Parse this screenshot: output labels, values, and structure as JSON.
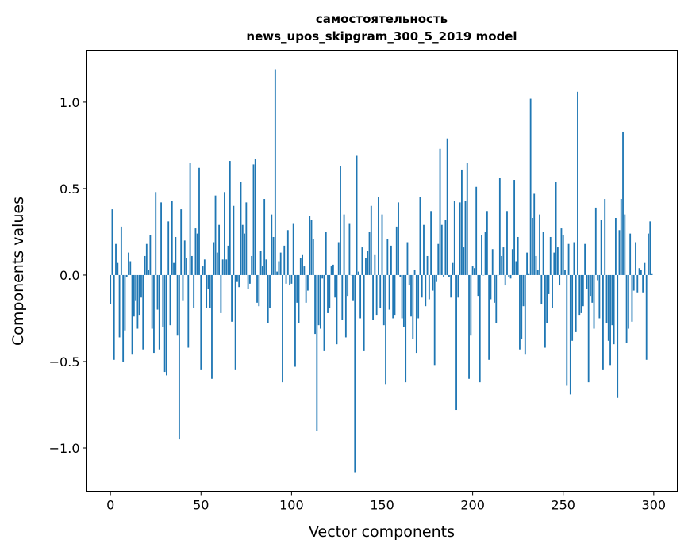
{
  "chart_data": {
    "type": "bar",
    "title": "самостоятельность",
    "subtitle": "news_upos_skipgram_300_5_2019 model",
    "xlabel": "Vector components",
    "ylabel": "Components values",
    "xlim": [
      -13,
      313
    ],
    "ylim": [
      -1.25,
      1.3
    ],
    "grid": false,
    "bar_color": "#1f77b4",
    "xticks": [
      {
        "value": 0,
        "label": "0"
      },
      {
        "value": 50,
        "label": "50"
      },
      {
        "value": 100,
        "label": "100"
      },
      {
        "value": 150,
        "label": "150"
      },
      {
        "value": 200,
        "label": "200"
      },
      {
        "value": 250,
        "label": "250"
      },
      {
        "value": 300,
        "label": "300"
      }
    ],
    "yticks": [
      {
        "value": -1.0,
        "label": "−1.0"
      },
      {
        "value": -0.5,
        "label": "−0.5"
      },
      {
        "value": 0.0,
        "label": "0.0"
      },
      {
        "value": 0.5,
        "label": "0.5"
      },
      {
        "value": 1.0,
        "label": "1.0"
      }
    ],
    "values": [
      -0.17,
      0.38,
      -0.49,
      0.18,
      0.07,
      -0.36,
      0.28,
      -0.5,
      -0.32,
      -0.01,
      0.13,
      0.08,
      -0.46,
      -0.24,
      -0.15,
      -0.31,
      -0.23,
      -0.13,
      -0.43,
      0.11,
      0.18,
      0.03,
      0.23,
      -0.31,
      -0.45,
      0.48,
      -0.2,
      -0.43,
      0.42,
      -0.3,
      -0.56,
      -0.58,
      0.31,
      -0.29,
      0.43,
      0.07,
      0.22,
      -0.35,
      -0.95,
      0.38,
      -0.15,
      0.2,
      0.1,
      -0.42,
      0.65,
      0.11,
      -0.19,
      0.27,
      0.24,
      0.62,
      -0.55,
      0.05,
      0.09,
      -0.19,
      -0.08,
      -0.19,
      -0.6,
      0.19,
      0.46,
      0.13,
      0.29,
      -0.22,
      0.09,
      0.48,
      0.09,
      0.17,
      0.66,
      -0.27,
      0.4,
      -0.55,
      -0.04,
      -0.07,
      0.54,
      0.29,
      0.24,
      0.42,
      -0.08,
      -0.05,
      0.11,
      0.64,
      0.67,
      -0.16,
      -0.18,
      0.14,
      0.05,
      0.44,
      0.09,
      -0.28,
      -0.19,
      0.35,
      0.22,
      1.19,
      0.02,
      0.08,
      0.13,
      -0.62,
      0.17,
      -0.05,
      0.26,
      -0.06,
      -0.05,
      0.3,
      -0.53,
      -0.16,
      -0.28,
      0.1,
      0.12,
      0.05,
      -0.16,
      -0.09,
      0.34,
      0.32,
      0.21,
      -0.34,
      -0.9,
      -0.29,
      -0.31,
      -0.02,
      -0.44,
      0.25,
      -0.22,
      -0.19,
      0.05,
      0.06,
      -0.13,
      -0.4,
      0.19,
      0.63,
      -0.26,
      0.35,
      -0.36,
      -0.12,
      0.3,
      0.0,
      -0.15,
      -1.14,
      0.69,
      0.02,
      -0.25,
      0.16,
      -0.44,
      0.1,
      0.14,
      0.25,
      0.4,
      -0.26,
      0.12,
      -0.23,
      0.45,
      -0.19,
      0.35,
      -0.29,
      -0.63,
      0.21,
      -0.2,
      0.17,
      -0.25,
      -0.23,
      0.28,
      0.42,
      -0.01,
      -0.25,
      -0.3,
      -0.62,
      0.19,
      -0.06,
      -0.24,
      -0.37,
      0.03,
      -0.45,
      -0.25,
      0.45,
      -0.13,
      0.29,
      -0.18,
      0.11,
      -0.14,
      0.37,
      -0.09,
      -0.52,
      -0.04,
      0.18,
      0.73,
      0.29,
      -0.01,
      0.32,
      0.79,
      -0.01,
      -0.13,
      0.07,
      0.43,
      -0.78,
      -0.13,
      0.42,
      0.61,
      0.16,
      0.43,
      0.65,
      -0.6,
      -0.35,
      0.05,
      0.04,
      0.51,
      -0.12,
      -0.62,
      0.23,
      0.0,
      0.25,
      0.37,
      -0.49,
      -0.14,
      0.15,
      -0.16,
      -0.28,
      0.0,
      0.56,
      0.11,
      0.16,
      -0.06,
      0.37,
      -0.01,
      -0.02,
      0.15,
      0.55,
      0.08,
      0.22,
      -0.43,
      -0.37,
      -0.18,
      -0.46,
      0.13,
      0.01,
      1.02,
      0.33,
      0.47,
      0.11,
      0.03,
      0.35,
      -0.17,
      0.25,
      -0.42,
      -0.28,
      -0.11,
      0.22,
      -0.19,
      0.13,
      0.54,
      0.16,
      -0.06,
      0.27,
      0.23,
      0.03,
      -0.64,
      0.18,
      -0.69,
      -0.38,
      0.19,
      -0.33,
      1.06,
      -0.23,
      -0.22,
      -0.18,
      0.18,
      -0.08,
      -0.62,
      -0.12,
      -0.16,
      -0.31,
      0.39,
      -0.03,
      -0.25,
      0.32,
      -0.55,
      0.44,
      -0.28,
      -0.38,
      -0.52,
      -0.29,
      -0.4,
      0.33,
      -0.71,
      0.26,
      0.44,
      0.83,
      0.35,
      -0.39,
      -0.31,
      0.24,
      -0.27,
      -0.09,
      0.19,
      -0.1,
      0.04,
      0.03,
      -0.1,
      0.07,
      -0.49,
      0.24,
      0.31,
      0.01
    ]
  }
}
